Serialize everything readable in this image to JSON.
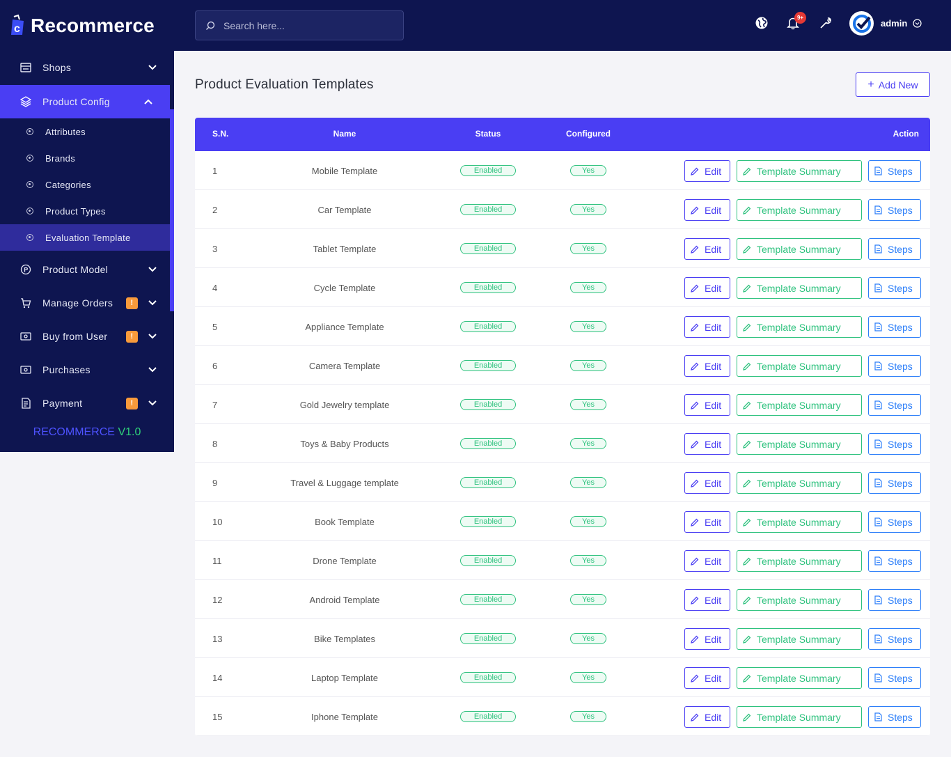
{
  "brand": {
    "name": "Recommerce"
  },
  "sidebar": {
    "items": [
      {
        "label": "Shops",
        "icon": "store-icon",
        "badge": ""
      },
      {
        "label": "Product Config",
        "icon": "layers-icon",
        "badge": ""
      },
      {
        "label": "Product Model",
        "icon": "p-circle-icon",
        "badge": ""
      },
      {
        "label": "Manage Orders",
        "icon": "cart-icon",
        "badge": "!"
      },
      {
        "label": "Buy from User",
        "icon": "cash-icon",
        "badge": "!"
      },
      {
        "label": "Purchases",
        "icon": "cash-icon",
        "badge": ""
      },
      {
        "label": "Payment",
        "icon": "invoice-icon",
        "badge": "!"
      }
    ],
    "submenu": [
      {
        "label": "Attributes"
      },
      {
        "label": "Brands"
      },
      {
        "label": "Categories"
      },
      {
        "label": "Product Types"
      },
      {
        "label": "Evaluation Template"
      }
    ],
    "version_name": "RECOMMERCE",
    "version_num": "V1.0"
  },
  "header": {
    "search_placeholder": "Search here...",
    "notif_count": "9+",
    "user_name": "admin"
  },
  "main": {
    "title": "Product Evaluation Templates",
    "add_label": "Add New",
    "columns": {
      "sn": "S.N.",
      "name": "Name",
      "status": "Status",
      "configured": "Configured",
      "action": "Action"
    },
    "buttons": {
      "edit": "Edit",
      "summary": "Template Summary",
      "steps": "Steps"
    },
    "rows": [
      {
        "sn": "1",
        "name": "Mobile Template",
        "status": "Enabled",
        "configured": "Yes"
      },
      {
        "sn": "2",
        "name": "Car Template",
        "status": "Enabled",
        "configured": "Yes"
      },
      {
        "sn": "3",
        "name": "Tablet Template",
        "status": "Enabled",
        "configured": "Yes"
      },
      {
        "sn": "4",
        "name": "Cycle Template",
        "status": "Enabled",
        "configured": "Yes"
      },
      {
        "sn": "5",
        "name": "Appliance Template",
        "status": "Enabled",
        "configured": "Yes"
      },
      {
        "sn": "6",
        "name": "Camera Template",
        "status": "Enabled",
        "configured": "Yes"
      },
      {
        "sn": "7",
        "name": "Gold Jewelry template",
        "status": "Enabled",
        "configured": "Yes"
      },
      {
        "sn": "8",
        "name": "Toys & Baby Products",
        "status": "Enabled",
        "configured": "Yes"
      },
      {
        "sn": "9",
        "name": "Travel & Luggage template",
        "status": "Enabled",
        "configured": "Yes"
      },
      {
        "sn": "10",
        "name": "Book Template",
        "status": "Enabled",
        "configured": "Yes"
      },
      {
        "sn": "11",
        "name": "Drone Template",
        "status": "Enabled",
        "configured": "Yes"
      },
      {
        "sn": "12",
        "name": "Android Template",
        "status": "Enabled",
        "configured": "Yes"
      },
      {
        "sn": "13",
        "name": "Bike Templates",
        "status": "Enabled",
        "configured": "Yes"
      },
      {
        "sn": "14",
        "name": "Laptop Template",
        "status": "Enabled",
        "configured": "Yes"
      },
      {
        "sn": "15",
        "name": "Iphone Template",
        "status": "Enabled",
        "configured": "Yes"
      }
    ]
  },
  "colors": {
    "sidebar_bg": "#0e1550",
    "accent": "#4a3ef3",
    "success": "#2ec27e",
    "info": "#2d7ff9",
    "warning": "#f89a3b"
  }
}
